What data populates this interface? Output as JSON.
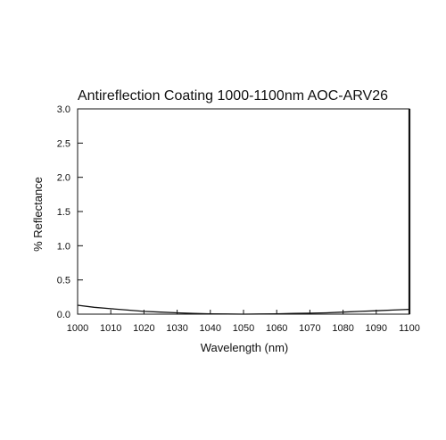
{
  "chart_data": {
    "type": "line",
    "title": "Antireflection Coating 1000-1100nm AOC-ARV26",
    "xlabel": "Wavelength (nm)",
    "ylabel": "% Reflectance",
    "xlim": [
      1000,
      1100
    ],
    "ylim": [
      0,
      3.0
    ],
    "x_ticks": [
      "1000",
      "1010",
      "1020",
      "1030",
      "1040",
      "1050",
      "1060",
      "1070",
      "1080",
      "1090",
      "1100"
    ],
    "y_ticks": [
      "0.0",
      "0.5",
      "1.0",
      "1.5",
      "2.0",
      "2.5",
      "3.0"
    ],
    "grid": false,
    "series": [
      {
        "x": [
          1000,
          1005,
          1010,
          1015,
          1020,
          1025,
          1030,
          1035,
          1040,
          1045,
          1050,
          1055,
          1060,
          1065,
          1070,
          1075,
          1080,
          1085,
          1090,
          1095,
          1100
        ],
        "y": [
          0.13,
          0.1,
          0.08,
          0.06,
          0.04,
          0.03,
          0.02,
          0.01,
          0.005,
          0.002,
          0.0,
          0.002,
          0.005,
          0.01,
          0.015,
          0.02,
          0.03,
          0.04,
          0.05,
          0.06,
          0.07
        ]
      }
    ]
  }
}
